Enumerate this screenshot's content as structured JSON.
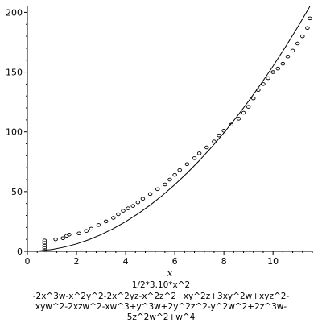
{
  "chart_data": {
    "type": "scatter",
    "xlabel": "x",
    "ylabel": "",
    "xlim": [
      0,
      11.6
    ],
    "ylim": [
      0,
      205
    ],
    "x_ticks": [
      0,
      2,
      4,
      6,
      8,
      10
    ],
    "y_ticks": [
      0,
      50,
      100,
      150,
      200
    ],
    "grid": false,
    "caption_line1": "1/2*3.10*x^2",
    "caption_line2": "-2x^3w-x^2y^2-2x^2yz-x^2z^2+xy^2z+3xy^2w+xyz^2-xyw^2-2xzw^2-xw^3+y^3w+2y^2z^2-y^2w^2+2z^3w-5z^2w^2+w^4",
    "series": [
      {
        "style": "points",
        "x": [
          0.7,
          0.7,
          0.7,
          0.7,
          0.7,
          1.15,
          1.45,
          1.6,
          1.7,
          2.1,
          2.4,
          2.6,
          2.9,
          3.2,
          3.5,
          3.7,
          3.9,
          4.1,
          4.3,
          4.5,
          4.7,
          5.0,
          5.3,
          5.6,
          5.8,
          6.0,
          6.2,
          6.5,
          6.8,
          7.0,
          7.3,
          7.6,
          7.8,
          8.0,
          8.3,
          8.6,
          8.8,
          9.0,
          9.2,
          9.4,
          9.6,
          9.8,
          10.0,
          10.2,
          10.4,
          10.6,
          10.8,
          11.0,
          11.2,
          11.4,
          11.5
        ],
        "y": [
          1,
          3,
          5,
          7,
          9,
          10,
          11,
          13,
          14,
          15,
          17,
          19,
          22,
          25,
          28,
          31,
          34,
          36,
          38,
          41,
          44,
          48,
          52,
          56,
          60,
          64,
          68,
          73,
          78,
          82,
          87,
          92,
          97,
          101,
          106,
          111,
          116,
          121,
          128,
          135,
          140,
          145,
          150,
          153,
          157,
          163,
          168,
          174,
          180,
          187,
          195
        ]
      },
      {
        "style": "line",
        "x": [
          0,
          0.5,
          1,
          1.5,
          2,
          2.5,
          3,
          3.5,
          4,
          4.5,
          5,
          5.5,
          6,
          6.5,
          7,
          7.5,
          8,
          8.5,
          9,
          9.5,
          10,
          10.5,
          11,
          11.5
        ],
        "y": [
          0,
          0.39,
          1.55,
          3.49,
          6.2,
          9.69,
          13.95,
          18.99,
          24.8,
          31.39,
          38.75,
          46.89,
          55.8,
          65.49,
          75.95,
          87.19,
          99.2,
          111.99,
          125.55,
          139.89,
          155.0,
          170.89,
          187.55,
          204.99
        ]
      }
    ]
  }
}
